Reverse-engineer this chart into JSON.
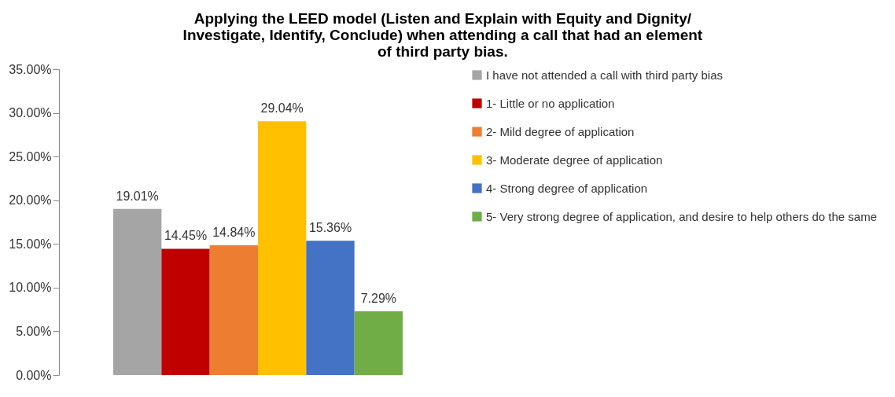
{
  "chart_data": {
    "type": "bar",
    "title": "Applying the LEED model (Listen and Explain with Equity and Dignity/ Investigate, Identify, Conclude) when attending a call that had an element of third party bias.",
    "categories": [
      null
    ],
    "series": [
      {
        "name": "I have not attended a call with third party bias",
        "color": "#a5a5a5",
        "values": [
          19.01
        ],
        "value_labels": [
          "19.01%"
        ]
      },
      {
        "name": "1- Little or no application",
        "color": "#c00000",
        "values": [
          14.45
        ],
        "value_labels": [
          "14.45%"
        ]
      },
      {
        "name": "2- Mild degree of application",
        "color": "#ed7d31",
        "values": [
          14.84
        ],
        "value_labels": [
          "14.84%"
        ]
      },
      {
        "name": "3- Moderate degree of application",
        "color": "#ffc000",
        "values": [
          29.04
        ],
        "value_labels": [
          "29.04%"
        ]
      },
      {
        "name": "4- Strong degree of application",
        "color": "#4472c4",
        "values": [
          15.36
        ],
        "value_labels": [
          "15.36%"
        ]
      },
      {
        "name": "5- Very strong degree of application, and desire to help others do the same",
        "color": "#70ad47",
        "values": [
          7.29
        ],
        "value_labels": [
          "7.29%"
        ]
      }
    ],
    "ylim": [
      0,
      35
    ],
    "yticks": [
      {
        "value": 0,
        "label": "0.00%"
      },
      {
        "value": 5,
        "label": "5.00%"
      },
      {
        "value": 10,
        "label": "10.00%"
      },
      {
        "value": 15,
        "label": "15.00%"
      },
      {
        "value": 20,
        "label": "20.00%"
      },
      {
        "value": 25,
        "label": "25.00%"
      },
      {
        "value": 30,
        "label": "30.00%"
      },
      {
        "value": 35,
        "label": "35.00%"
      }
    ],
    "grid": false,
    "legend": "right"
  }
}
